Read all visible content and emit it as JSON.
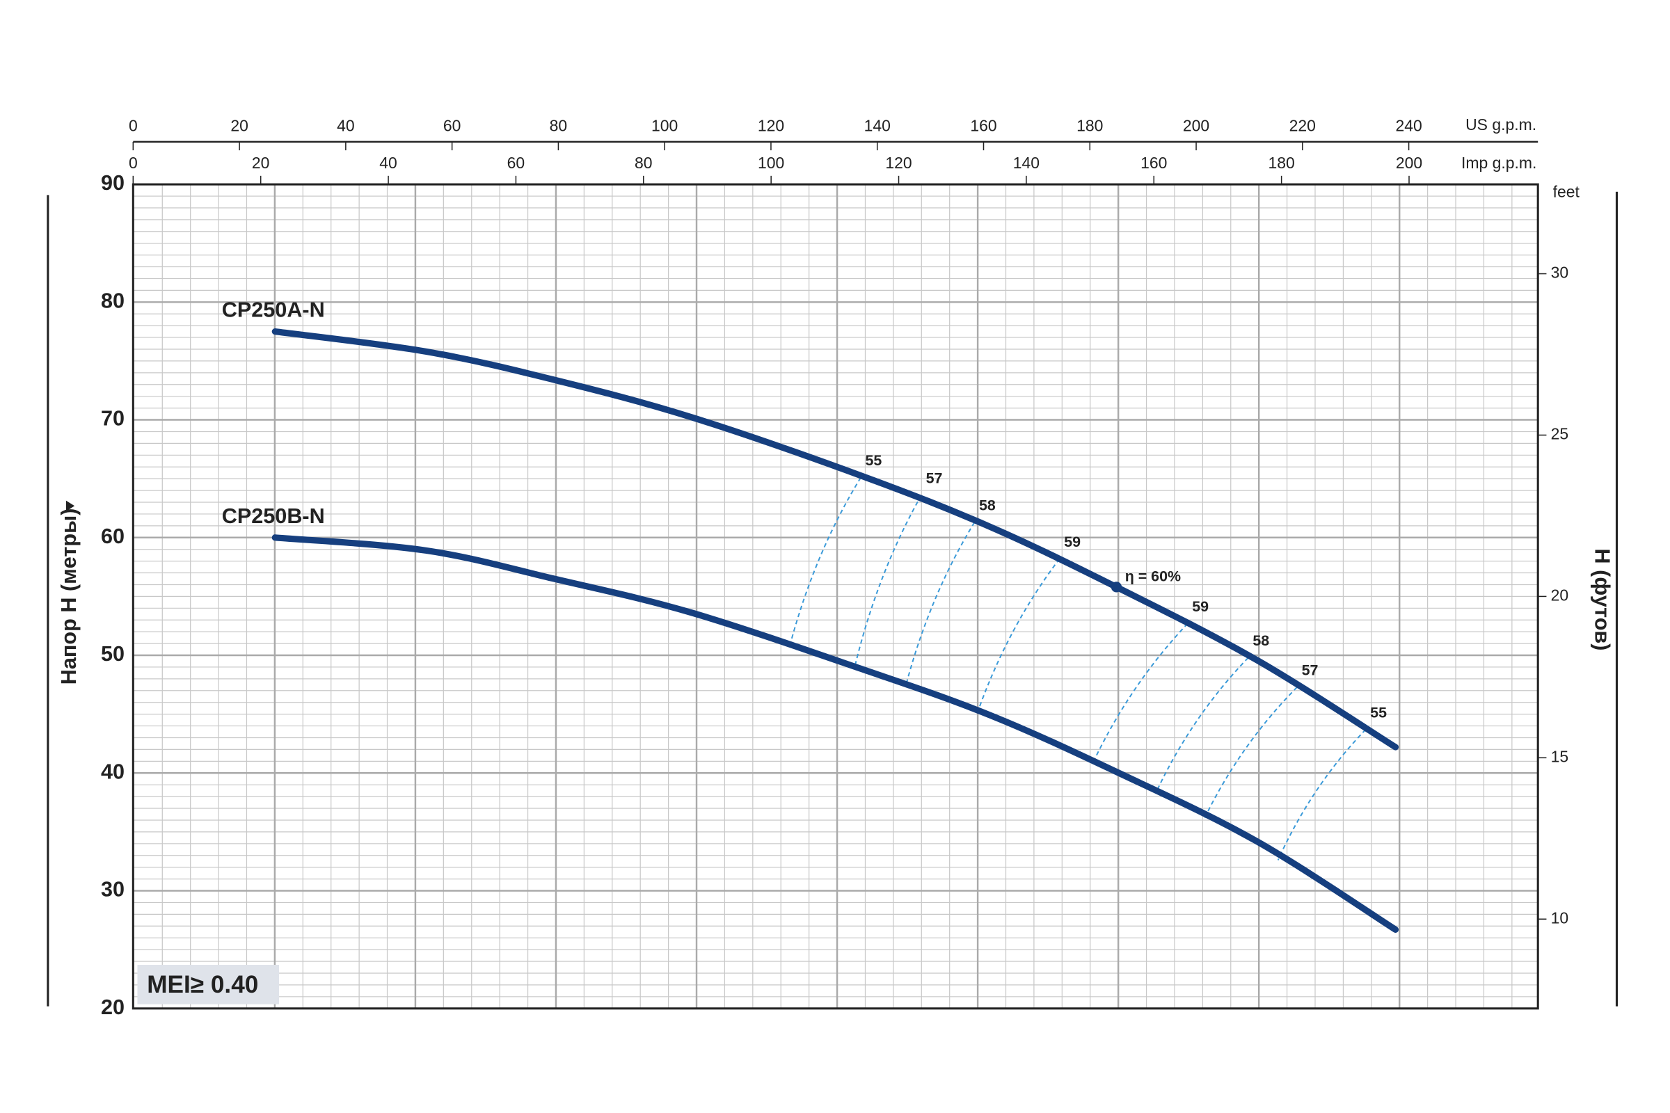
{
  "chart_data": {
    "type": "line",
    "xlabel": "US g.p.m.",
    "xlim": [
      0,
      264.3
    ],
    "xticks": [
      0,
      20,
      40,
      60,
      80,
      100,
      120,
      140,
      160,
      180,
      200,
      220,
      240
    ],
    "x2label": "Imp g.p.m.",
    "x2lim": [
      0,
      220.2
    ],
    "x2ticks": [
      0,
      20,
      40,
      60,
      80,
      100,
      120,
      140,
      160,
      180,
      200
    ],
    "ylabel": "Напор H (метры)",
    "ylim": [
      20,
      90
    ],
    "yticks": [
      20,
      30,
      40,
      50,
      60,
      70,
      80,
      90
    ],
    "y2label": "feet",
    "y2title": "H (футов)",
    "y2lim": [
      7.23,
      32.77
    ],
    "y2ticks": [
      10,
      15,
      20,
      25,
      30
    ],
    "grid": true,
    "x": [
      26.7,
      55.1,
      79.2,
      105.2,
      137.3,
      161.3,
      185,
      211.4,
      237.5
    ],
    "series": [
      {
        "name": "CP250A-N",
        "color": "#163f7f",
        "values": [
          77.5,
          75.8,
          73.4,
          70.2,
          65.2,
          60.9,
          55.8,
          49.6,
          42.2
        ]
      },
      {
        "name": "CP250B-N",
        "color": "#163f7f",
        "values": [
          60.0,
          58.9,
          56.5,
          53.6,
          48.8,
          44.9,
          40.1,
          34.2,
          26.7
        ]
      }
    ],
    "efficiency_lines": [
      {
        "efficiency": 55,
        "x": [
          136.9,
          123.6
        ],
        "y": [
          65.1,
          50.9
        ]
      },
      {
        "efficiency": 57,
        "x": [
          148.3,
          135.7
        ],
        "y": [
          63.6,
          48.9
        ]
      },
      {
        "efficiency": 58,
        "x": [
          158.3,
          145.3
        ],
        "y": [
          61.3,
          47.3
        ]
      },
      {
        "efficiency": 59,
        "x": [
          174.3,
          158.9
        ],
        "y": [
          58.2,
          45.2
        ]
      },
      {
        "efficiency": 59,
        "x": [
          198.4,
          180.4
        ],
        "y": [
          52.7,
          40.7
        ]
      },
      {
        "efficiency": 58,
        "x": [
          209.8,
          192.4
        ],
        "y": [
          49.8,
          38.3
        ]
      },
      {
        "efficiency": 57,
        "x": [
          219.0,
          201.4
        ],
        "y": [
          47.3,
          36.0
        ]
      },
      {
        "efficiency": 55,
        "x": [
          231.9,
          215.4
        ],
        "y": [
          43.7,
          32.6
        ]
      }
    ],
    "best_point": {
      "label": "η = 60%",
      "x": 185,
      "y": 55.8
    },
    "annotation": "MEI≥ 0.40"
  }
}
